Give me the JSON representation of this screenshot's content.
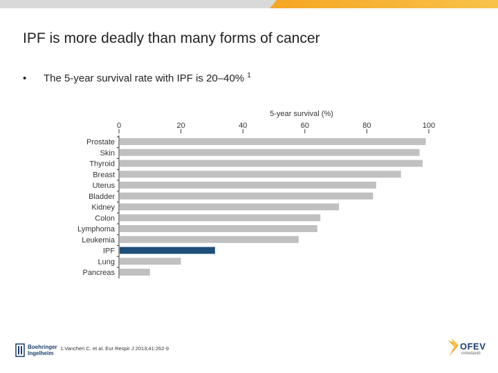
{
  "slide": {
    "title": "IPF is more deadly than many forms of cancer",
    "bullet_marker": "•",
    "bullet_text": "The 5-year survival rate with IPF is 20–40%",
    "bullet_ref": "1",
    "footnote": "1.Vancheri C. et al. Eur Respir J 2013;41:262-9",
    "left_logo_text": [
      "Boehringer",
      "Ingelheim"
    ],
    "right_logo_text": "OFEV",
    "right_logo_subtext": "nintedanib"
  },
  "colors": {
    "bar_default": "#c0c0c0",
    "bar_highlight": "#1f4e79",
    "accent": "#f5a623",
    "top_bar_grey": "#d9d9d9"
  },
  "chart_data": {
    "type": "bar",
    "orientation": "horizontal",
    "title": "5-year survival (%)",
    "xlabel": "5-year survival (%)",
    "ylabel": "",
    "xlim": [
      0,
      100
    ],
    "xticks": [
      0,
      20,
      40,
      60,
      80,
      100
    ],
    "grid": false,
    "highlight_category": "IPF",
    "categories": [
      "Prostate",
      "Skin",
      "Thyroid",
      "Breast",
      "Uterus",
      "Bladder",
      "Kidney",
      "Colon",
      "Lymphoma",
      "Leukemia",
      "IPF",
      "Lung",
      "Pancreas"
    ],
    "values": [
      99,
      97,
      98,
      91,
      83,
      82,
      71,
      65,
      64,
      58,
      31,
      20,
      10
    ]
  }
}
